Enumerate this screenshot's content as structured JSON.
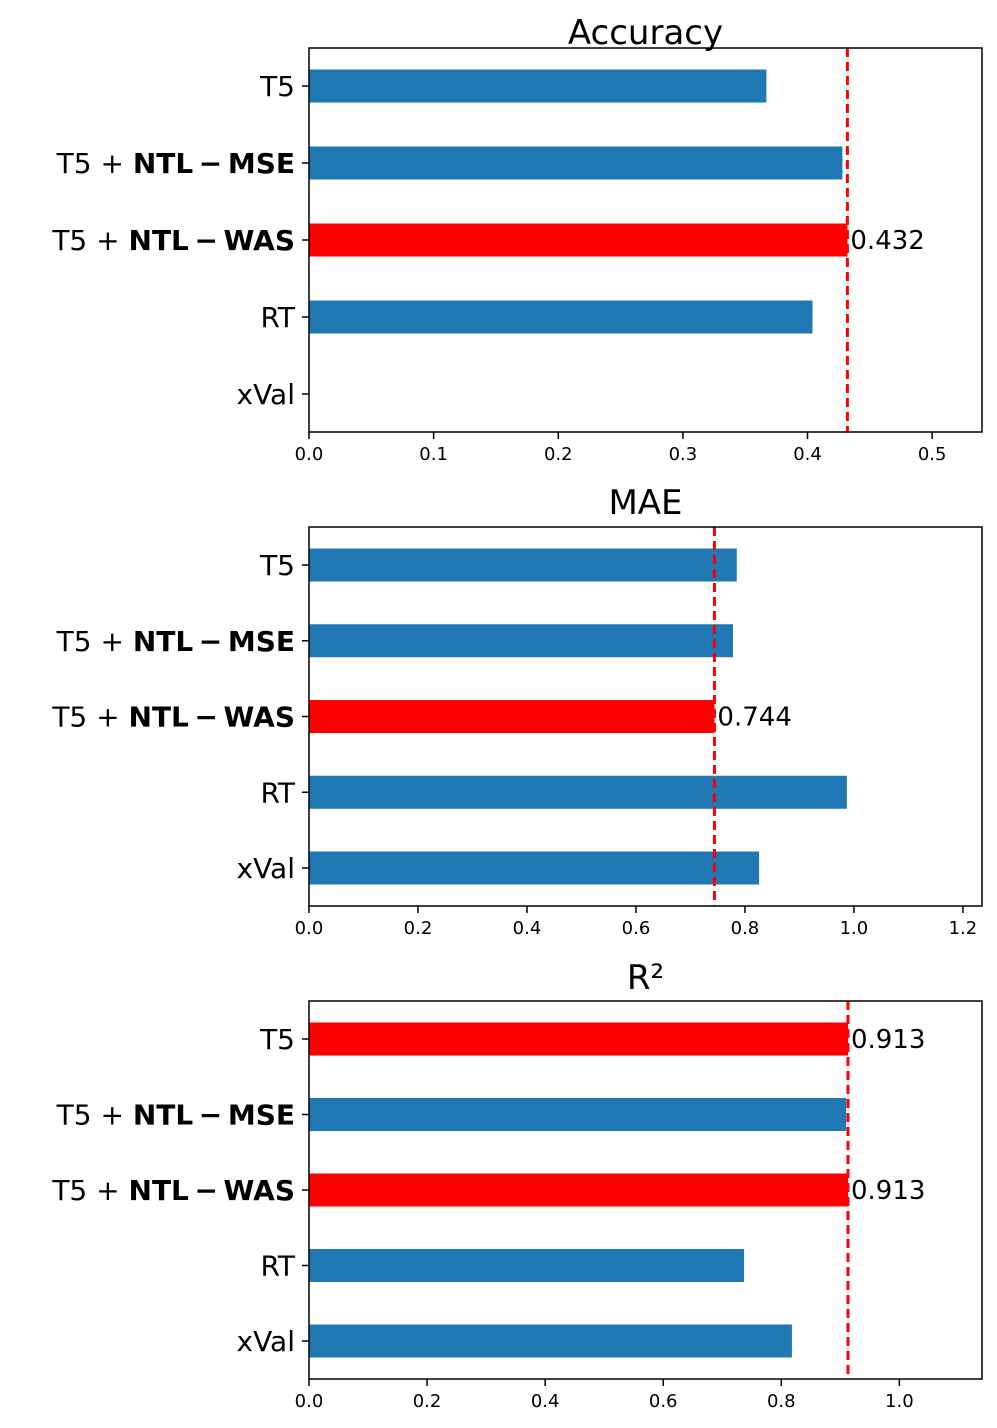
{
  "colors": {
    "default": "#1f77b4",
    "best": "#ff0000",
    "refline": "#ff0000"
  },
  "chart_data": [
    {
      "type": "bar",
      "orientation": "horizontal",
      "title": "Accuracy",
      "categories": [
        {
          "plain": "T5",
          "bold": ""
        },
        {
          "plain": "T5 + ",
          "bold": "NTL − MSE"
        },
        {
          "plain": "T5 + ",
          "bold": "NTL − WAS"
        },
        {
          "plain": "RT",
          "bold": ""
        },
        {
          "plain": "xVal",
          "bold": ""
        }
      ],
      "values": [
        0.367,
        0.428,
        0.432,
        0.404,
        null
      ],
      "highlight": [
        false,
        false,
        true,
        false,
        false
      ],
      "data_labels": [
        "",
        "",
        "0.432",
        "",
        ""
      ],
      "ref_line": 0.432,
      "xlim": [
        0,
        0.54
      ],
      "xticks": [
        0.0,
        0.1,
        0.2,
        0.3,
        0.4,
        0.5
      ],
      "xtick_labels": [
        "0.0",
        "0.1",
        "0.2",
        "0.3",
        "0.4",
        "0.5"
      ]
    },
    {
      "type": "bar",
      "orientation": "horizontal",
      "title": "MAE",
      "categories": [
        {
          "plain": "T5",
          "bold": ""
        },
        {
          "plain": "T5 + ",
          "bold": "NTL − MSE"
        },
        {
          "plain": "T5 + ",
          "bold": "NTL − WAS"
        },
        {
          "plain": "RT",
          "bold": ""
        },
        {
          "plain": "xVal",
          "bold": ""
        }
      ],
      "values": [
        0.785,
        0.778,
        0.744,
        0.987,
        0.826
      ],
      "highlight": [
        false,
        false,
        true,
        false,
        false
      ],
      "data_labels": [
        "",
        "",
        "0.744",
        "",
        ""
      ],
      "ref_line": 0.744,
      "xlim": [
        0,
        1.235
      ],
      "xticks": [
        0.0,
        0.2,
        0.4,
        0.6,
        0.8,
        1.0,
        1.2
      ],
      "xtick_labels": [
        "0.0",
        "0.2",
        "0.4",
        "0.6",
        "0.8",
        "1.0",
        "1.2"
      ]
    },
    {
      "type": "bar",
      "orientation": "horizontal",
      "title": "R²",
      "categories": [
        {
          "plain": "T5",
          "bold": ""
        },
        {
          "plain": "T5 + ",
          "bold": "NTL − MSE"
        },
        {
          "plain": "T5 + ",
          "bold": "NTL − WAS"
        },
        {
          "plain": "RT",
          "bold": ""
        },
        {
          "plain": "xVal",
          "bold": ""
        }
      ],
      "values": [
        0.913,
        0.91,
        0.913,
        0.737,
        0.818
      ],
      "highlight": [
        true,
        false,
        true,
        false,
        false
      ],
      "data_labels": [
        "0.913",
        "",
        "0.913",
        "",
        ""
      ],
      "ref_line": 0.913,
      "xlim": [
        0,
        1.14
      ],
      "xticks": [
        0.0,
        0.2,
        0.4,
        0.6,
        0.8,
        1.0
      ],
      "xtick_labels": [
        "0.0",
        "0.2",
        "0.4",
        "0.6",
        "0.8",
        "1.0"
      ]
    }
  ]
}
